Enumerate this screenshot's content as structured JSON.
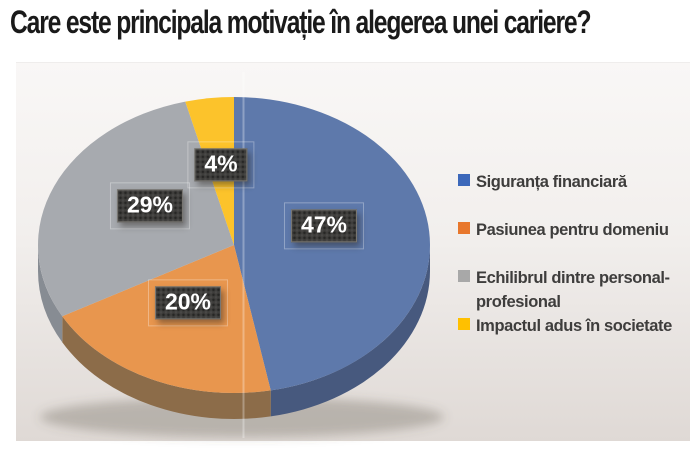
{
  "title": "Care este principala motivație în alegerea unei cariere?",
  "chart_data": {
    "type": "pie",
    "style": "3d",
    "title": "Care este principala motivație în alegerea unei cariere?",
    "total": 100,
    "legend_position": "right",
    "rotation_start_deg": 0,
    "direction": "clockwise",
    "slices": [
      {
        "label": "Siguranța financiară",
        "value": 47,
        "data_label": "47%",
        "color": "#5E79AB",
        "side_color": "#47597E",
        "legend_color": "#3C68BA"
      },
      {
        "label": "Pasiunea pentru domeniu",
        "value": 20,
        "data_label": "20%",
        "color": "#E8964E",
        "side_color": "#8C6C49",
        "legend_color": "#E8772C"
      },
      {
        "label": "Echilibrul dintre personal-profesional",
        "value": 29,
        "data_label": "29%",
        "color": "#A7AAAF",
        "side_color": "#878C93",
        "legend_color": "#A8A8A8"
      },
      {
        "label": "Impactul adus în societate",
        "value": 4,
        "data_label": "4%",
        "color": "#FCC32B",
        "side_color": "#C3951E",
        "legend_color": "#FFC000"
      }
    ],
    "colors": {
      "label_box_bg": "#3E3D3B",
      "label_box_text": "#FFFFFF",
      "legend_text": "#3E3D3C",
      "title_text": "#1A1A1A",
      "panel_bg_top": "#F9F7F5",
      "panel_bg_bottom": "#DFD9D5"
    }
  }
}
